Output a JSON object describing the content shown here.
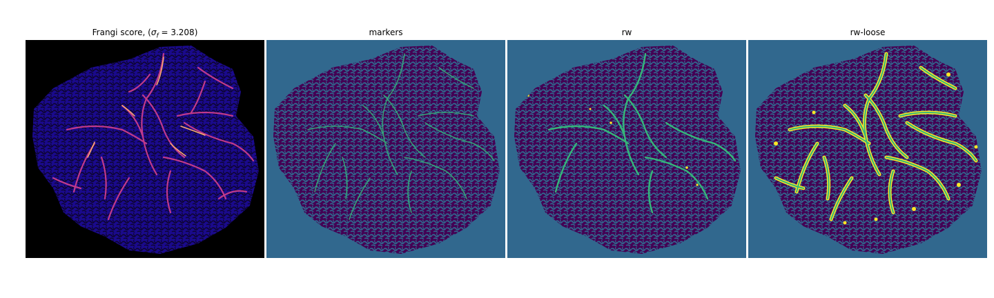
{
  "panels": [
    {
      "id": "frangi",
      "title_prefix": "Frangi score, (",
      "title_math": "σ",
      "title_sub": "f",
      "title_suffix": " = 3.208)",
      "colormap": "magma"
    },
    {
      "id": "markers",
      "title": "markers",
      "colormap": "viridis"
    },
    {
      "id": "rw",
      "title": "rw",
      "colormap": "viridis"
    },
    {
      "id": "rw-loose",
      "title": "rw-loose",
      "colormap": "viridis"
    }
  ],
  "colors": {
    "frangi_background": "#000000",
    "frangi_tissue": "#1a0a8c",
    "frangi_tissue_dark": "#0d0430",
    "frangi_vessel": "#c13a8a",
    "frangi_vessel_bright": "#fcae70",
    "viridis_background": "#31688e",
    "viridis_tissue": "#440154",
    "viridis_marker": "#35b779",
    "viridis_vessel_loose": "#fde725"
  }
}
